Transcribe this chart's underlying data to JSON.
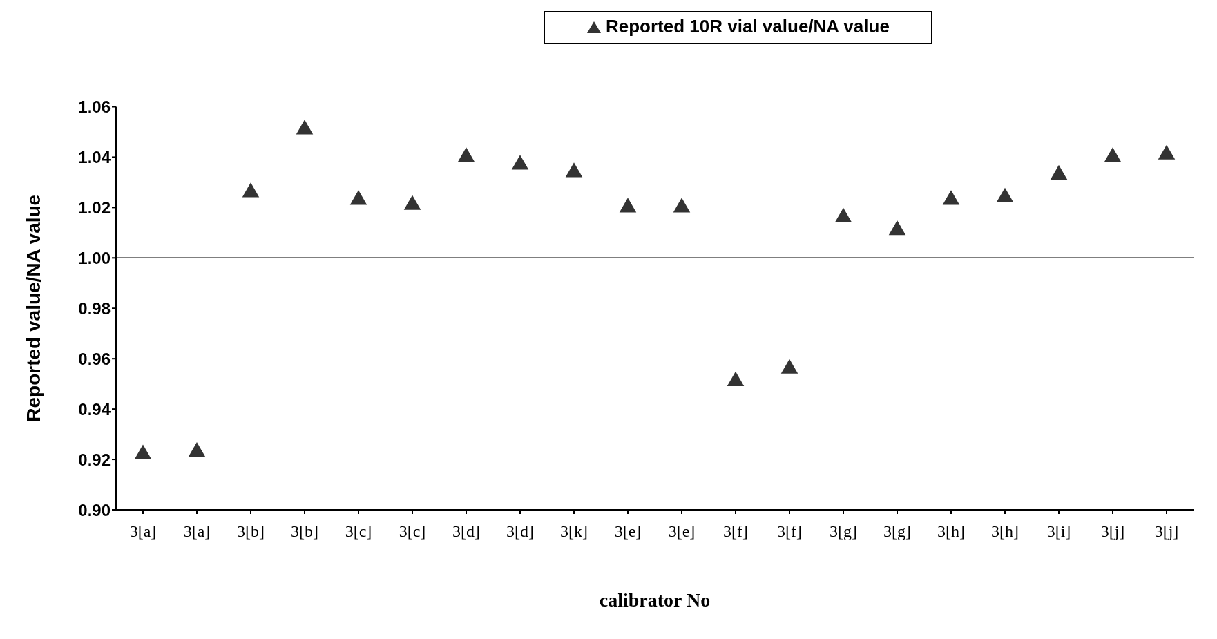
{
  "chart_data": {
    "type": "scatter",
    "xlabel": "calibrator No",
    "ylabel": "Reported value/NA value",
    "categories": [
      "3[a]",
      "3[a]",
      "3[b]",
      "3[b]",
      "3[c]",
      "3[c]",
      "3[d]",
      "3[d]",
      "3[k]",
      "3[e]",
      "3[e]",
      "3[f]",
      "3[f]",
      "3[g]",
      "3[g]",
      "3[h]",
      "3[h]",
      "3[i]",
      "3[j]",
      "3[j]"
    ],
    "series": [
      {
        "name": "Reported 10R vial value/NA value",
        "color": "#333333",
        "values": [
          0.922,
          0.923,
          1.026,
          1.051,
          1.023,
          1.021,
          1.04,
          1.037,
          1.034,
          1.02,
          1.02,
          0.951,
          0.956,
          1.016,
          1.011,
          1.023,
          1.024,
          1.033,
          1.04,
          1.041
        ]
      }
    ],
    "ylim": [
      0.9,
      1.06
    ],
    "yticks": [
      {
        "value": 0.9,
        "label": "0.90"
      },
      {
        "value": 0.92,
        "label": "0.92"
      },
      {
        "value": 0.94,
        "label": "0.94"
      },
      {
        "value": 0.96,
        "label": "0.96"
      },
      {
        "value": 0.98,
        "label": "0.98"
      },
      {
        "value": 1.0,
        "label": "1.00"
      },
      {
        "value": 1.02,
        "label": "1.02"
      },
      {
        "value": 1.04,
        "label": "1.04"
      },
      {
        "value": 1.06,
        "label": "1.06"
      }
    ],
    "ref_lines": [
      {
        "axis": "y",
        "value": 1.0,
        "color": "#000000"
      }
    ],
    "marker": "triangle",
    "grid": false,
    "legend": "top right"
  }
}
